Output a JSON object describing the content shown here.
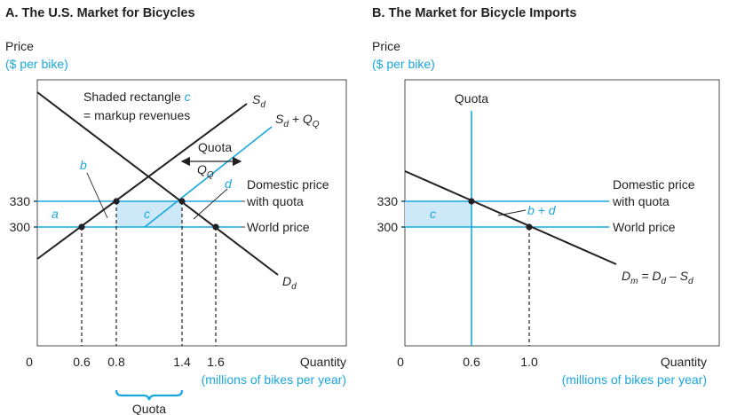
{
  "panels": [
    {
      "title": "A. The U.S. Market for Bicycles",
      "y_label": "Price",
      "y_unit": "($ per bike)",
      "x_label": "Quantity",
      "x_unit": "(millions of bikes per year)",
      "origin": "0",
      "x_ticks": [
        "0.6",
        "0.8",
        "1.4",
        "1.6"
      ],
      "y_ticks": [
        "330",
        "300"
      ],
      "annotations": {
        "shaded_line1": "Shaded rectangle ",
        "shaded_c": "c",
        "shaded_line2": "= markup revenues",
        "sd": "S",
        "sd_sub": "d",
        "sdq": "S",
        "sdq_sub1": "d",
        "sdq_plus": " + Q",
        "sdq_sub2": "Q",
        "quota_arrow": "Quota",
        "qq": "Q",
        "qq_sub": "Q",
        "dd": "D",
        "dd_sub": "d",
        "domestic1": "Domestic price",
        "domestic2": "with quota",
        "world": "World price",
        "a": "a",
        "b": "b",
        "c": "c",
        "d": "d",
        "quota_brace": "Quota"
      }
    },
    {
      "title": "B. The Market for Bicycle Imports",
      "y_label": "Price",
      "y_unit": "($ per bike)",
      "x_label": "Quantity",
      "x_unit": "(millions of bikes per year)",
      "origin": "0",
      "x_ticks": [
        "0.6",
        "1.0"
      ],
      "y_ticks": [
        "330",
        "300"
      ],
      "annotations": {
        "quota": "Quota",
        "c": "c",
        "bd": "b + d",
        "domestic1": "Domestic price",
        "domestic2": "with quota",
        "world": "World price",
        "dm": "D",
        "dm_sub1": "m",
        "dm_eq": " = D",
        "dm_sub2": "d",
        "dm_minus": " – S",
        "dm_sub3": "d"
      }
    }
  ],
  "colors": {
    "ink": "#231f20",
    "accent": "#1aa7df",
    "shade": "#cde9f7"
  },
  "chart_data": [
    {
      "type": "line",
      "title": "A. The U.S. Market for Bicycles",
      "xlabel": "Quantity (millions of bikes per year)",
      "ylabel": "Price ($ per bike)",
      "series": [
        {
          "name": "Sd",
          "x": [
            0.6,
            0.8
          ],
          "y": [
            300,
            330
          ]
        },
        {
          "name": "Sd + QQ",
          "x": [
            0.8,
            1.4
          ],
          "y": [
            300,
            330
          ]
        },
        {
          "name": "Dd",
          "x": [
            1.4,
            1.6
          ],
          "y": [
            330,
            300
          ]
        }
      ],
      "points": [
        {
          "x": 0.6,
          "y": 300
        },
        {
          "x": 0.8,
          "y": 330
        },
        {
          "x": 1.4,
          "y": 330
        },
        {
          "x": 1.6,
          "y": 300
        }
      ],
      "hlines": [
        {
          "name": "Domestic price with quota",
          "y": 330
        },
        {
          "name": "World price",
          "y": 300
        }
      ],
      "regions": [
        "a",
        "b",
        "c",
        "d"
      ],
      "quota": 0.6
    },
    {
      "type": "line",
      "title": "B. The Market for Bicycle Imports",
      "xlabel": "Quantity (millions of bikes per year)",
      "ylabel": "Price ($ per bike)",
      "series": [
        {
          "name": "Dm = Dd – Sd",
          "x": [
            0.6,
            1.0
          ],
          "y": [
            330,
            300
          ]
        }
      ],
      "points": [
        {
          "x": 0.6,
          "y": 330
        },
        {
          "x": 1.0,
          "y": 300
        }
      ],
      "vlines": [
        {
          "name": "Quota",
          "x": 0.6
        }
      ],
      "hlines": [
        {
          "name": "Domestic price with quota",
          "y": 330
        },
        {
          "name": "World price",
          "y": 300
        }
      ],
      "regions": [
        "c",
        "b + d"
      ]
    }
  ]
}
